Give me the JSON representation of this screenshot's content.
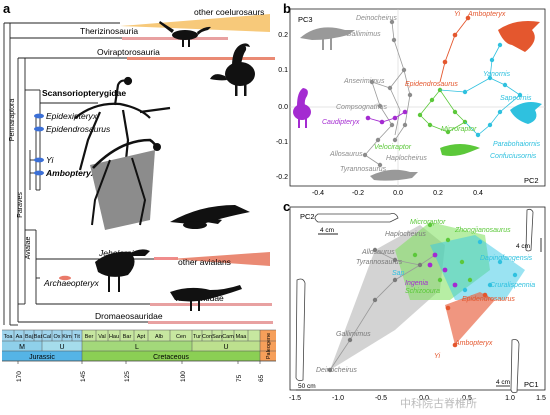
{
  "panels": {
    "a": "a",
    "b": "b",
    "c": "c"
  },
  "phylogeny": {
    "taxa": {
      "other_coelurosaurs": "other coelurosaurs",
      "therizinosauria": "Therizinosauria",
      "oviraptorosauria": "Oviraptorosauria",
      "scansoriopterygidae": "Scansoriopterygidae",
      "epidexipteryx": "Epidexipteryx",
      "epidendrosaurus": "Epidendrosaurus",
      "yi": "Yi",
      "ambopteryx": "Ambopteryx",
      "jeholornis": "Jeholornis",
      "other_avialans": "other avialans",
      "archaeopteryx": "Archaeopteryx",
      "troodontidae": "Troodontidae",
      "dromaeosauridae": "Dromaeosauridae"
    },
    "clades": {
      "pennaraptora": "Pennaraptora",
      "paraves": "Paraves",
      "avialae": "Avialae"
    }
  },
  "timescale": {
    "stages": [
      "Toa",
      "Aa",
      "Baj",
      "Bat",
      "Cal",
      "Ox",
      "Kim",
      "Tit",
      "Ber",
      "Val",
      "Hau",
      "Bar",
      "Apt",
      "Alb",
      "Cen",
      "Tur",
      "Con",
      "San",
      "Cam",
      "Maa"
    ],
    "epochs": [
      "M",
      "U",
      "L",
      "U"
    ],
    "periods": [
      "Jurassic",
      "Cretaceous",
      "Paleogene"
    ],
    "ages": [
      "170",
      "145",
      "125",
      "100",
      "75",
      "65"
    ]
  },
  "plot_b": {
    "title": "",
    "xlabel": "PC2",
    "ylabel": "PC3",
    "xticks": [
      "-0.4",
      "-0.2",
      "0.0",
      "0.2",
      "0.4"
    ],
    "yticks": [
      "0.2",
      "0.1",
      "0.0",
      "-0.1",
      "-0.2"
    ],
    "labels": {
      "deinocheirus": "Deinocheirus",
      "gallimimus": "Gallimimus",
      "yi": "Yi",
      "ambopteryx": "Ambopteryx",
      "anserimimus": "Anserimimus",
      "epidendrosaurus": "Epidendrosaurus",
      "yanornis": "Yanornis",
      "sapeornis": "Sapeornis",
      "compsognathus": "Compsognathus",
      "caudipteryx": "Caudipteryx",
      "microraptor": "Microraptor",
      "parabohaiornis": "Parabohaiornis",
      "velociraptor": "Velociraptor",
      "confuciusornis": "Confuciusornis",
      "allosaurus": "Allosaurus",
      "haplocheirus": "Haplocheirus",
      "tyrannosaurus": "Tyrannosaurus"
    }
  },
  "plot_c": {
    "xlabel": "PC1",
    "ylabel": "PC2",
    "xticks": [
      "-1.5",
      "-1.0",
      "-0.5",
      "0.0",
      "0.5",
      "1.0",
      "1.5"
    ],
    "scalebars": {
      "top": "4 cm",
      "right": "4 cm",
      "left": "50 cm",
      "bottom": "4 cm"
    },
    "labels": {
      "microraptor": "Microraptor",
      "thongjianosaurus": "Zhongjianosaurus",
      "haplocheirus": "Haplocheirus",
      "allosaurus": "Allosaurus",
      "tyrannosaurus": "Tyrannosaurus",
      "dapingfangensis": "Dapingfangensis",
      "ingenia": "Ingenia",
      "schizooura": "Schizooura",
      "cruralispennia": "Cruralispennia",
      "epidendrosaurus": "Epidendrosaurus",
      "gallimimus": "Gallimimus",
      "yi": "Yi",
      "ambopteryx": "Ambopteryx",
      "deinocheirus": "Deinocheirus",
      "sap": "Sap"
    }
  },
  "watermark": "中科院古脊椎所",
  "colors": {
    "grey": "#8a8a8a",
    "red": "#e4572e",
    "green": "#5cc83a",
    "cyan": "#2fc1df",
    "purple": "#a42bd1",
    "blue": "#2563c8",
    "orange": "#f5b75a",
    "salmon": "#ea8a74"
  }
}
